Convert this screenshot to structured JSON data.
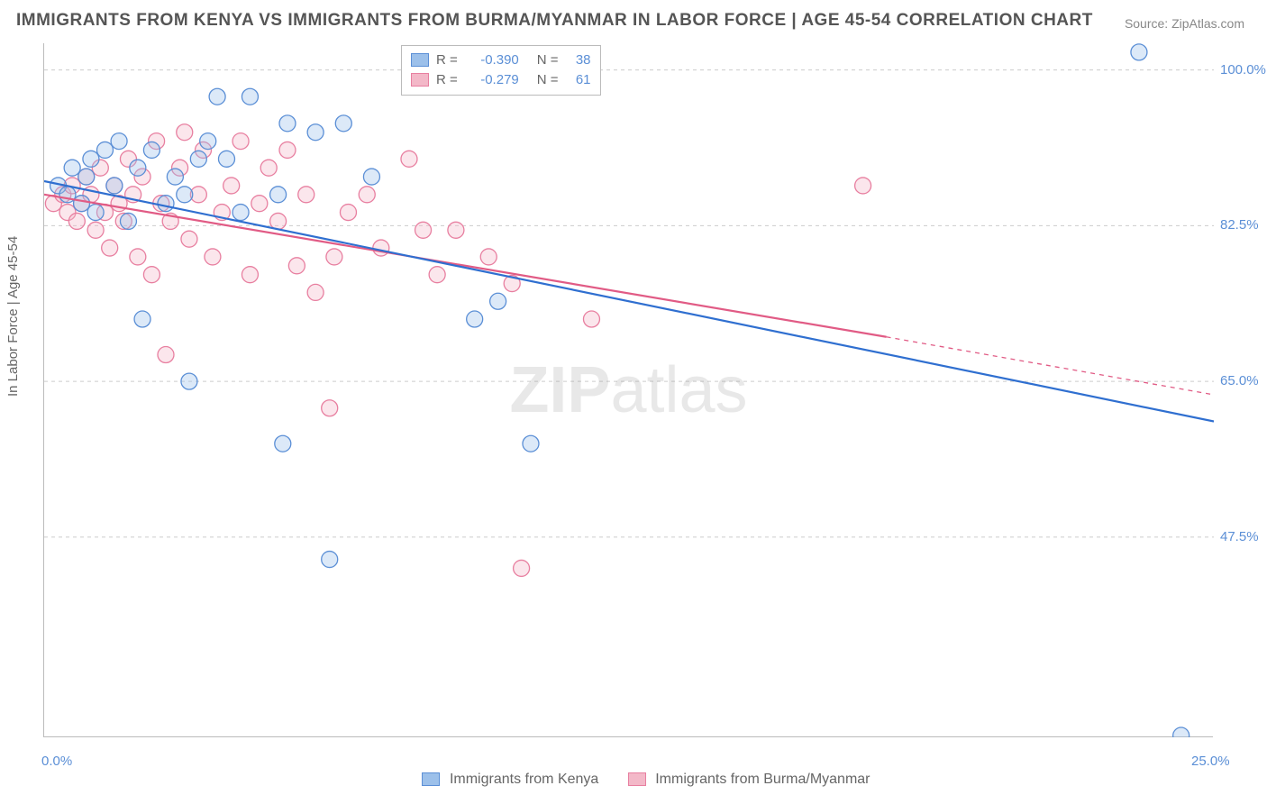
{
  "title": "IMMIGRANTS FROM KENYA VS IMMIGRANTS FROM BURMA/MYANMAR IN LABOR FORCE | AGE 45-54 CORRELATION CHART",
  "source": "Source: ZipAtlas.com",
  "ylabel": "In Labor Force | Age 45-54",
  "watermark_bold": "ZIP",
  "watermark_light": "atlas",
  "chart": {
    "type": "scatter",
    "background_color": "#ffffff",
    "grid_color": "#cccccc",
    "grid_dash": "4 4",
    "frame_color": "#bbbbbb",
    "xlim": [
      0.0,
      25.0
    ],
    "ylim": [
      25.0,
      103.0
    ],
    "yticks": [
      47.5,
      65.0,
      82.5,
      100.0
    ],
    "ytick_labels": [
      "47.5%",
      "65.0%",
      "82.5%",
      "100.0%"
    ],
    "xticks": [
      0.0,
      5.0,
      10.0,
      15.0,
      20.0,
      25.0
    ],
    "xtick_labels": [
      "0.0%",
      "",
      "",
      "",
      "",
      "25.0%"
    ],
    "title_fontsize": 19,
    "title_color": "#555555",
    "label_fontsize": 15,
    "tick_label_color": "#5b8fd6",
    "marker_radius": 9,
    "marker_fill_opacity": 0.35,
    "marker_stroke_width": 1.3,
    "line_width": 2.2
  },
  "series": [
    {
      "name": "Immigrants from Kenya",
      "color_fill": "#9cc0ea",
      "color_stroke": "#5b8fd6",
      "line_color": "#2f6fd0",
      "R": "-0.390",
      "N": "38",
      "trend": {
        "x1": 0.0,
        "y1": 87.5,
        "x2": 25.0,
        "y2": 60.5
      },
      "points": [
        [
          0.3,
          87
        ],
        [
          0.5,
          86
        ],
        [
          0.6,
          89
        ],
        [
          0.8,
          85
        ],
        [
          0.9,
          88
        ],
        [
          1.0,
          90
        ],
        [
          1.1,
          84
        ],
        [
          1.3,
          91
        ],
        [
          1.5,
          87
        ],
        [
          1.6,
          92
        ],
        [
          1.8,
          83
        ],
        [
          2.0,
          89
        ],
        [
          2.1,
          72
        ],
        [
          2.3,
          91
        ],
        [
          2.6,
          85
        ],
        [
          2.8,
          88
        ],
        [
          3.0,
          86
        ],
        [
          3.1,
          65
        ],
        [
          3.3,
          90
        ],
        [
          3.5,
          92
        ],
        [
          3.7,
          97
        ],
        [
          3.9,
          90
        ],
        [
          4.2,
          84
        ],
        [
          4.4,
          97
        ],
        [
          5.0,
          86
        ],
        [
          5.1,
          58
        ],
        [
          5.2,
          94
        ],
        [
          5.8,
          93
        ],
        [
          6.1,
          45
        ],
        [
          6.4,
          94
        ],
        [
          7.0,
          88
        ],
        [
          9.2,
          72
        ],
        [
          9.7,
          74
        ],
        [
          10.4,
          58
        ],
        [
          23.4,
          102
        ],
        [
          24.3,
          25.2
        ]
      ]
    },
    {
      "name": "Immigrants from Burma/Myanmar",
      "color_fill": "#f3b8c8",
      "color_stroke": "#e87fa0",
      "line_color": "#e15b85",
      "R": "-0.279",
      "N": "61",
      "trend_solid": {
        "x1": 0.0,
        "y1": 86.0,
        "x2": 18.0,
        "y2": 70.0
      },
      "trend_dash": {
        "x1": 18.0,
        "y1": 70.0,
        "x2": 25.0,
        "y2": 63.5
      },
      "points": [
        [
          0.2,
          85
        ],
        [
          0.4,
          86
        ],
        [
          0.5,
          84
        ],
        [
          0.6,
          87
        ],
        [
          0.7,
          83
        ],
        [
          0.8,
          85
        ],
        [
          0.9,
          88
        ],
        [
          1.0,
          86
        ],
        [
          1.1,
          82
        ],
        [
          1.2,
          89
        ],
        [
          1.3,
          84
        ],
        [
          1.4,
          80
        ],
        [
          1.5,
          87
        ],
        [
          1.6,
          85
        ],
        [
          1.7,
          83
        ],
        [
          1.8,
          90
        ],
        [
          1.9,
          86
        ],
        [
          2.0,
          79
        ],
        [
          2.1,
          88
        ],
        [
          2.3,
          77
        ],
        [
          2.4,
          92
        ],
        [
          2.5,
          85
        ],
        [
          2.6,
          68
        ],
        [
          2.7,
          83
        ],
        [
          2.9,
          89
        ],
        [
          3.0,
          93
        ],
        [
          3.1,
          81
        ],
        [
          3.3,
          86
        ],
        [
          3.4,
          91
        ],
        [
          3.6,
          79
        ],
        [
          3.8,
          84
        ],
        [
          4.0,
          87
        ],
        [
          4.2,
          92
        ],
        [
          4.4,
          77
        ],
        [
          4.6,
          85
        ],
        [
          4.8,
          89
        ],
        [
          5.0,
          83
        ],
        [
          5.2,
          91
        ],
        [
          5.4,
          78
        ],
        [
          5.6,
          86
        ],
        [
          5.8,
          75
        ],
        [
          6.1,
          62
        ],
        [
          6.2,
          79
        ],
        [
          6.5,
          84
        ],
        [
          6.9,
          86
        ],
        [
          7.2,
          80
        ],
        [
          7.8,
          90
        ],
        [
          8.1,
          82
        ],
        [
          8.4,
          77
        ],
        [
          8.8,
          82
        ],
        [
          9.5,
          79
        ],
        [
          10.0,
          76
        ],
        [
          10.2,
          44
        ],
        [
          11.7,
          72
        ],
        [
          17.5,
          87
        ]
      ]
    }
  ],
  "bottom_legend": [
    {
      "label": "Immigrants from Kenya",
      "fill": "#9cc0ea",
      "stroke": "#5b8fd6"
    },
    {
      "label": "Immigrants from Burma/Myanmar",
      "fill": "#f3b8c8",
      "stroke": "#e87fa0"
    }
  ]
}
